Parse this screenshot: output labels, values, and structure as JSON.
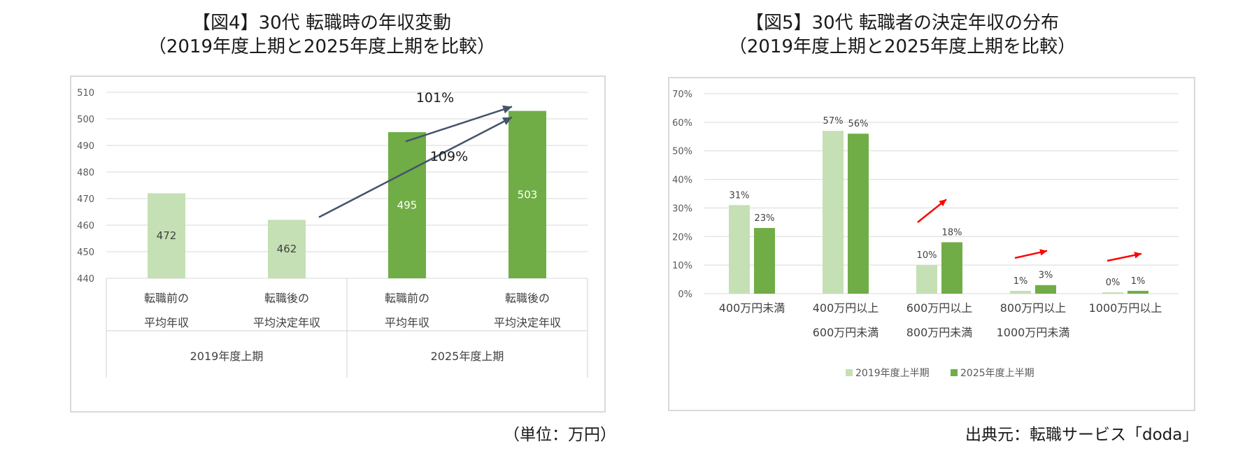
{
  "figure4": {
    "title_line1": "【図4】30代 転職時の年収変動",
    "title_line2": "（2019年度上期と2025年度上期を比較）",
    "unit_note": "（単位：万円）",
    "chart_data": {
      "type": "bar",
      "ylim": [
        440,
        510
      ],
      "yticks": [
        "510",
        "500",
        "490",
        "480",
        "470",
        "460",
        "450",
        "440"
      ],
      "grid": true,
      "bars": [
        {
          "label_line1": "転職前の",
          "label_line2": "平均年収",
          "group": "2019年度上期",
          "value": 472,
          "value_label": "472",
          "color": "#c5e0b4"
        },
        {
          "label_line1": "転職後の",
          "label_line2": "平均決定年収",
          "group": "2019年度上期",
          "value": 462,
          "value_label": "462",
          "color": "#c5e0b4"
        },
        {
          "label_line1": "転職前の",
          "label_line2": "平均年収",
          "group": "2025年度上期",
          "value": 495,
          "value_label": "495",
          "color": "#70ad47"
        },
        {
          "label_line1": "転職後の",
          "label_line2": "平均決定年収",
          "group": "2025年度上期",
          "value": 503,
          "value_label": "503",
          "color": "#70ad47"
        }
      ],
      "groups": [
        "2019年度上期",
        "2025年度上期"
      ],
      "annotations": [
        "101%",
        "109%"
      ],
      "arrow_color": "#44546a"
    }
  },
  "figure5": {
    "title_line1": "【図5】30代 転職者の決定年収の分布",
    "title_line2": "（2019年度上期と2025年度上期を比較）",
    "source_note": "出典元：転職サービス「doda」",
    "chart_data": {
      "type": "bar",
      "ylim": [
        0,
        70
      ],
      "yticks": [
        "70%",
        "60%",
        "50%",
        "40%",
        "30%",
        "20%",
        "10%",
        "0%"
      ],
      "grid": true,
      "categories": [
        {
          "line1": "400万円未満",
          "line2": ""
        },
        {
          "line1": "400万円以上",
          "line2": "600万円未満"
        },
        {
          "line1": "600万円以上",
          "line2": "800万円未満"
        },
        {
          "line1": "800万円以上",
          "line2": "1000万円未満"
        },
        {
          "line1": "1000万円以上",
          "line2": ""
        }
      ],
      "series": [
        {
          "name": "2019年度上半期",
          "color": "#c5e0b4",
          "values": [
            31,
            57,
            10,
            1,
            0
          ],
          "labels": [
            "31%",
            "57%",
            "10%",
            "1%",
            "0%"
          ]
        },
        {
          "name": "2025年度上半期",
          "color": "#70ad47",
          "values": [
            23,
            56,
            18,
            3,
            1
          ],
          "labels": [
            "23%",
            "56%",
            "18%",
            "3%",
            "1%"
          ]
        }
      ],
      "legend_position": "bottom",
      "arrow_color": "#ff0000"
    }
  }
}
